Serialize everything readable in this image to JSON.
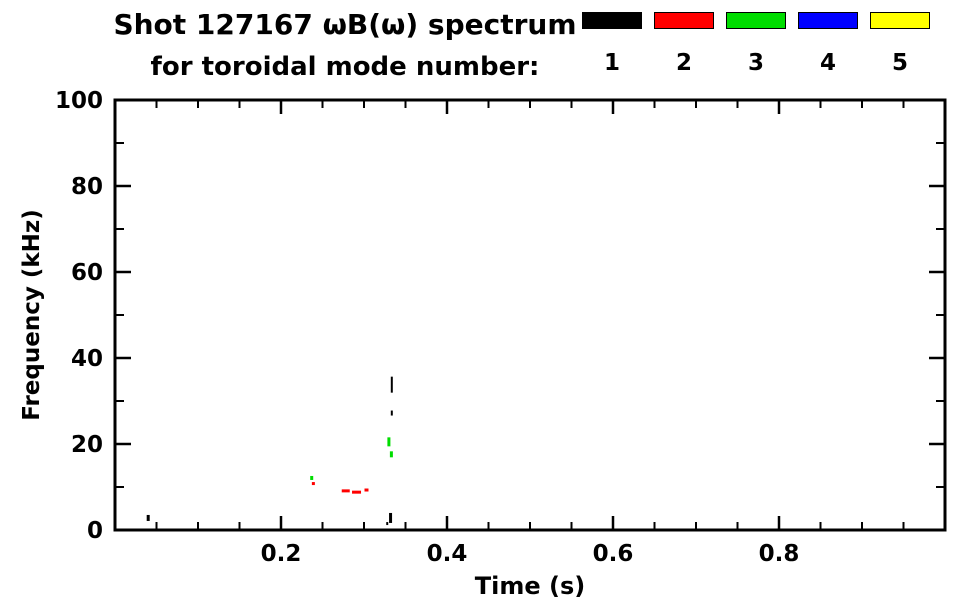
{
  "header": {
    "title_line1": "Shot 127167 ωB(ω) spectrum",
    "title_line2": "for toroidal mode number:"
  },
  "legend": {
    "position": "top-right",
    "entries": [
      {
        "label": "1",
        "color": "#000000"
      },
      {
        "label": "2",
        "color": "#ff0000"
      },
      {
        "label": "3",
        "color": "#00dd00"
      },
      {
        "label": "4",
        "color": "#0000ff"
      },
      {
        "label": "5",
        "color": "#ffff00"
      }
    ]
  },
  "chart_data": {
    "type": "scatter",
    "title": "Shot 127167 ωB(ω) spectrum for toroidal mode number: 1 2 3 4 5",
    "xlabel": "Time (s)",
    "ylabel": "Frequency (kHz)",
    "xlim": [
      0.0,
      1.0
    ],
    "ylim": [
      0,
      100
    ],
    "grid": false,
    "xticks": [
      {
        "v": 0.2,
        "label": "0.2"
      },
      {
        "v": 0.4,
        "label": "0.4"
      },
      {
        "v": 0.6,
        "label": "0.6"
      },
      {
        "v": 0.8,
        "label": "0.8"
      }
    ],
    "xtick_minor_step": 0.05,
    "yticks": [
      {
        "v": 0,
        "label": "0"
      },
      {
        "v": 20,
        "label": "20"
      },
      {
        "v": 40,
        "label": "40"
      },
      {
        "v": 60,
        "label": "60"
      },
      {
        "v": 80,
        "label": "80"
      },
      {
        "v": 100,
        "label": "100"
      }
    ],
    "ytick_minor_step": 10,
    "mode_colors": {
      "1": "#000000",
      "2": "#ff0000",
      "3": "#00dd00",
      "4": "#0000ff",
      "5": "#ffff00"
    },
    "points": [
      {
        "t": 0.04,
        "f": 2.8,
        "n": 1,
        "w": 3,
        "h": 6
      },
      {
        "t": 0.237,
        "f": 12.1,
        "n": 3,
        "w": 3,
        "h": 4
      },
      {
        "t": 0.239,
        "f": 10.8,
        "n": 2,
        "w": 3,
        "h": 3
      },
      {
        "t": 0.278,
        "f": 9.1,
        "n": 2,
        "w": 8,
        "h": 3
      },
      {
        "t": 0.291,
        "f": 8.8,
        "n": 2,
        "w": 9,
        "h": 3
      },
      {
        "t": 0.303,
        "f": 9.3,
        "n": 2,
        "w": 4,
        "h": 3
      },
      {
        "t": 0.33,
        "f": 20.5,
        "n": 3,
        "w": 3,
        "h": 9
      },
      {
        "t": 0.333,
        "f": 17.6,
        "n": 3,
        "w": 3,
        "h": 6
      },
      {
        "t": 0.3335,
        "f": 33.8,
        "n": 1,
        "w": 2,
        "h": 16
      },
      {
        "t": 0.3335,
        "f": 27.2,
        "n": 1,
        "w": 2,
        "h": 5
      },
      {
        "t": 0.332,
        "f": 2.8,
        "n": 1,
        "w": 3,
        "h": 10
      },
      {
        "t": 0.328,
        "f": 1.5,
        "n": 1,
        "w": 2,
        "h": 3
      }
    ]
  }
}
